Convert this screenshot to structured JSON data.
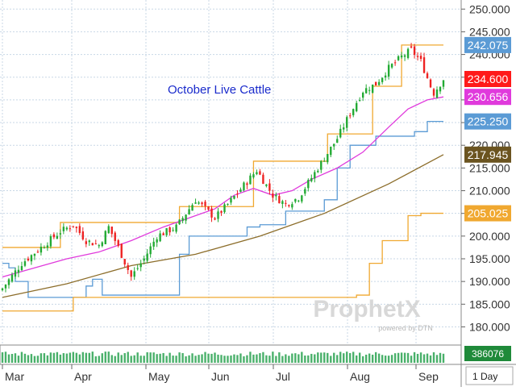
{
  "chart_data": {
    "type": "line",
    "title": "October Live Cattle",
    "x_labels": [
      "Mar",
      "Apr",
      "May",
      "Jun",
      "Jul",
      "Aug",
      "Sep"
    ],
    "timeframe_label": "1 Day",
    "y_ticks": [
      "250.000",
      "245.000",
      "240.000",
      "235.000",
      "230.000",
      "225.000",
      "220.000",
      "215.000",
      "210.000",
      "205.000",
      "200.000",
      "195.000",
      "190.000",
      "185.000",
      "180.000"
    ],
    "ylim": [
      176.0,
      252.0
    ],
    "grid": true,
    "price_bars": {
      "type": "candlestick",
      "days": 138,
      "close_path": [
        [
          0,
          188.5
        ],
        [
          6,
          194.0
        ],
        [
          12,
          197.5
        ],
        [
          18,
          201.0
        ],
        [
          22,
          202.5
        ],
        [
          26,
          199.0
        ],
        [
          30,
          198.0
        ],
        [
          33,
          202.0
        ],
        [
          36,
          197.5
        ],
        [
          40,
          191.0
        ],
        [
          44,
          195.0
        ],
        [
          48,
          200.0
        ],
        [
          54,
          202.0
        ],
        [
          60,
          208.0
        ],
        [
          66,
          204.0
        ],
        [
          70,
          207.0
        ],
        [
          76,
          212.0
        ],
        [
          79,
          214.5
        ],
        [
          84,
          209.0
        ],
        [
          88,
          207.0
        ],
        [
          92,
          208.5
        ],
        [
          98,
          215.0
        ],
        [
          104,
          221.5
        ],
        [
          108,
          227.0
        ],
        [
          112,
          232.0
        ],
        [
          116,
          233.5
        ],
        [
          120,
          237.0
        ],
        [
          124,
          239.5
        ],
        [
          127,
          241.0
        ],
        [
          130,
          238.5
        ],
        [
          133,
          233.0
        ],
        [
          134,
          231.5
        ],
        [
          137,
          234.6
        ]
      ]
    },
    "series": [
      {
        "label": "242.075",
        "color": "#f0a830",
        "style": "step",
        "points": [
          [
            0,
            197.5
          ],
          [
            18,
            203.0
          ],
          [
            55,
            206.5
          ],
          [
            78,
            216.5
          ],
          [
            101,
            222.5
          ],
          [
            115,
            233.0
          ],
          [
            124,
            242.075
          ],
          [
            137,
            242.075
          ]
        ]
      },
      {
        "label": "225.250",
        "color": "#5b9bd5",
        "style": "step",
        "points": [
          [
            0,
            194.0
          ],
          [
            2,
            193.0
          ],
          [
            4,
            190.0
          ],
          [
            8,
            186.5
          ],
          [
            22,
            186.5
          ],
          [
            26,
            189.0
          ],
          [
            28,
            190.5
          ],
          [
            31,
            187.0
          ],
          [
            50,
            187.0
          ],
          [
            55,
            196.0
          ],
          [
            58,
            200.0
          ],
          [
            72,
            200.0
          ],
          [
            76,
            202.0
          ],
          [
            80,
            202.5
          ],
          [
            88,
            205.5
          ],
          [
            96,
            205.5
          ],
          [
            100,
            208.0
          ],
          [
            104,
            215.0
          ],
          [
            108,
            220.0
          ],
          [
            116,
            222.0
          ],
          [
            124,
            222.0
          ],
          [
            128,
            223.0
          ],
          [
            132,
            225.25
          ],
          [
            137,
            225.25
          ]
        ]
      },
      {
        "label": "230.656",
        "color": "#e03adc",
        "style": "line",
        "points": [
          [
            0,
            191.0
          ],
          [
            10,
            193.0
          ],
          [
            20,
            195.0
          ],
          [
            30,
            196.5
          ],
          [
            40,
            199.0
          ],
          [
            50,
            202.0
          ],
          [
            60,
            204.5
          ],
          [
            66,
            206.0
          ],
          [
            72,
            209.0
          ],
          [
            78,
            210.5
          ],
          [
            84,
            209.0
          ],
          [
            90,
            210.0
          ],
          [
            96,
            212.5
          ],
          [
            104,
            215.0
          ],
          [
            112,
            218.5
          ],
          [
            120,
            224.0
          ],
          [
            126,
            228.0
          ],
          [
            132,
            230.0
          ],
          [
            137,
            230.656
          ]
        ]
      },
      {
        "label": "217.945",
        "color": "#8c6d2a",
        "style": "line",
        "points": [
          [
            0,
            186.5
          ],
          [
            20,
            189.5
          ],
          [
            40,
            193.5
          ],
          [
            60,
            196.0
          ],
          [
            80,
            200.0
          ],
          [
            100,
            205.0
          ],
          [
            120,
            211.5
          ],
          [
            137,
            217.945
          ]
        ]
      },
      {
        "label": "205.025",
        "color": "#f0a830",
        "style": "step",
        "points": [
          [
            0,
            183.5
          ],
          [
            18,
            183.5
          ],
          [
            22,
            186.5
          ],
          [
            88,
            186.5
          ],
          [
            110,
            187.0
          ],
          [
            114,
            194.0
          ],
          [
            118,
            199.0
          ],
          [
            126,
            204.5
          ],
          [
            130,
            205.025
          ],
          [
            137,
            205.025
          ]
        ]
      }
    ],
    "last_price": {
      "label": "234.600",
      "value": 234.6,
      "color": "#ff1a1a"
    },
    "volume": {
      "label": "386076"
    }
  },
  "colors": {
    "up_candle": "#22aa33",
    "down_candle": "#ee2222",
    "grid": "#c8d7e6",
    "volume_bar": "#49b06a",
    "title_text": "#1a2bcc"
  },
  "watermark": {
    "brand": "ProphetX",
    "tagline": "powered by DTN"
  }
}
